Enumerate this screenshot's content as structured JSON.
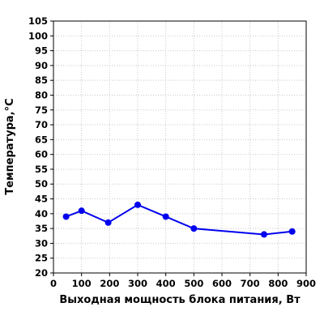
{
  "chart_data": {
    "type": "line",
    "xlabel": "Выходная мощность блока питания, Вт",
    "ylabel": "Температура,°C",
    "xlim": [
      0,
      900
    ],
    "ylim": [
      20,
      105
    ],
    "x_ticks": [
      0,
      100,
      200,
      300,
      400,
      500,
      600,
      700,
      800,
      900
    ],
    "y_ticks": [
      20,
      25,
      30,
      35,
      40,
      45,
      50,
      55,
      60,
      65,
      70,
      75,
      80,
      85,
      90,
      95,
      100,
      105
    ],
    "grid": true,
    "line_color": "#0000ee",
    "series": [
      {
        "x": [
          45,
          100,
          195,
          300,
          400,
          500,
          750,
          850
        ],
        "y": [
          39,
          41,
          37,
          43,
          39,
          35,
          33,
          34
        ]
      }
    ]
  }
}
